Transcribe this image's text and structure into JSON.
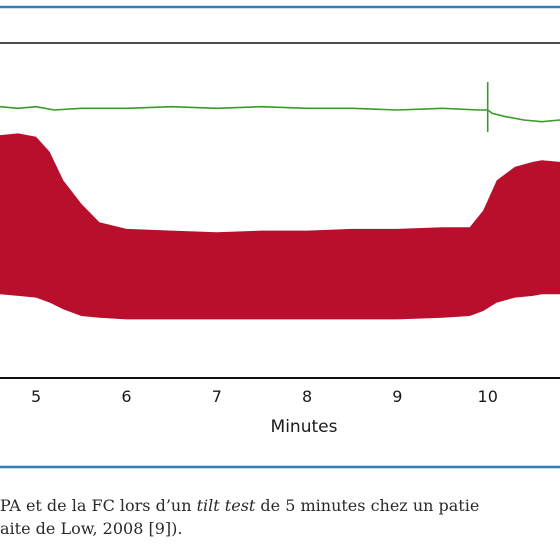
{
  "caption": {
    "line1_before": "PA et de la FC lors d’un ",
    "line1_italic": "tilt test",
    "line1_after": " de 5 minutes chez un patie",
    "line2": "aite de Low, 2008 [9])."
  },
  "colors": {
    "frame": "#2f80b8",
    "pressure_fill": "#b8102c",
    "heart_rate_line": "#3a9a2a",
    "axis": "#111111"
  },
  "chart_data": {
    "type": "area",
    "xlabel": "Minutes",
    "ticks": [
      5,
      6,
      7,
      8,
      9,
      10
    ],
    "tick_labels": [
      "5",
      "6",
      "7",
      "8",
      "9",
      "10"
    ],
    "xlim": [
      4.6,
      10.8
    ],
    "series": [
      {
        "kind": "heart_rate_line",
        "x": [
          4.6,
          4.8,
          5.0,
          5.2,
          5.5,
          6.0,
          6.5,
          7.0,
          7.5,
          8.0,
          8.5,
          9.0,
          9.5,
          9.9,
          10.0,
          10.05,
          10.2,
          10.4,
          10.6,
          10.8
        ],
        "y": [
          0.62,
          0.61,
          0.62,
          0.6,
          0.61,
          0.61,
          0.62,
          0.61,
          0.62,
          0.61,
          0.61,
          0.6,
          0.61,
          0.6,
          0.6,
          0.58,
          0.56,
          0.54,
          0.53,
          0.54
        ]
      },
      {
        "kind": "pressure_band",
        "x": [
          4.6,
          4.8,
          5.0,
          5.15,
          5.3,
          5.5,
          5.7,
          6.0,
          6.5,
          7.0,
          7.5,
          8.0,
          8.5,
          9.0,
          9.5,
          9.8,
          9.95,
          10.1,
          10.3,
          10.5,
          10.6,
          10.8
        ],
        "upper": [
          0.45,
          0.46,
          0.44,
          0.35,
          0.18,
          0.04,
          -0.07,
          -0.11,
          -0.12,
          -0.13,
          -0.12,
          -0.12,
          -0.11,
          -0.11,
          -0.1,
          -0.1,
          0.0,
          0.18,
          0.26,
          0.29,
          0.3,
          0.29
        ],
        "lower": [
          -0.5,
          -0.51,
          -0.52,
          -0.55,
          -0.59,
          -0.63,
          -0.64,
          -0.65,
          -0.65,
          -0.65,
          -0.65,
          -0.65,
          -0.65,
          -0.65,
          -0.64,
          -0.63,
          -0.6,
          -0.55,
          -0.52,
          -0.51,
          -0.5,
          -0.5
        ]
      }
    ]
  }
}
